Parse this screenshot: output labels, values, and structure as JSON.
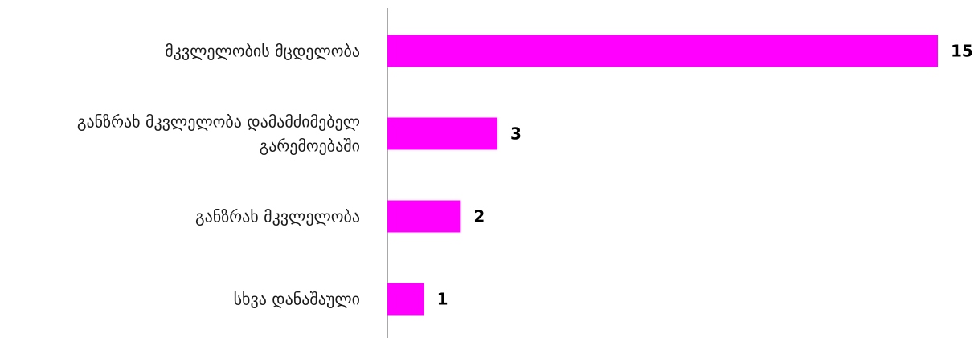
{
  "chart_data": {
    "type": "bar",
    "orientation": "horizontal",
    "categories": [
      "მკვლელობის მცდელობა",
      "განზრახ მკვლელობა დამამძიმებელ გარემოებაში",
      "განზრახ მკვლელობა",
      "სხვა დანაშაული"
    ],
    "category_lines": [
      [
        "მკვლელობის მცდელობა"
      ],
      [
        "განზრახ მკვლელობა დამამძიმებელ",
        "გარემოებაში"
      ],
      [
        "განზრახ მკვლელობა"
      ],
      [
        "სხვა დანაშაული"
      ]
    ],
    "values": [
      15,
      3,
      2,
      1
    ],
    "value_labels": [
      "15",
      "3",
      "2",
      "1"
    ],
    "xlim": [
      0,
      15
    ],
    "bar_color": "#ff00ff",
    "axis_color": "#8c8c8c",
    "grid": false,
    "legend": "none"
  }
}
